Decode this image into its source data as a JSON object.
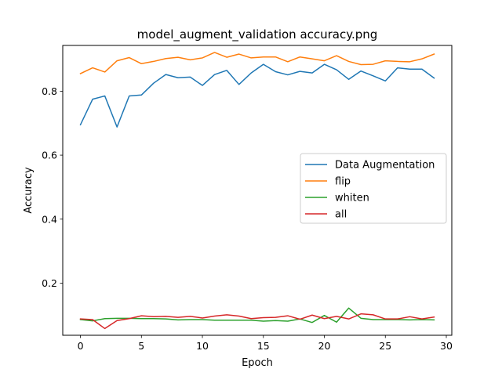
{
  "chart_data": {
    "type": "line",
    "title": "model_augment_validation accuracy.png",
    "xlabel": "Epoch",
    "ylabel": "Accuracy",
    "xlim": [
      -1.45,
      30.45
    ],
    "ylim": [
      0.037,
      0.943
    ],
    "xticks": [
      0,
      5,
      10,
      15,
      20,
      25,
      30
    ],
    "yticks": [
      0.2,
      0.4,
      0.6,
      0.8
    ],
    "xtick_labels": [
      "0",
      "5",
      "10",
      "15",
      "20",
      "25",
      "30"
    ],
    "ytick_labels": [
      "0.2",
      "0.4",
      "0.6",
      "0.8"
    ],
    "grid": false,
    "legend_position": "center-right",
    "x": [
      0,
      1,
      2,
      3,
      4,
      5,
      6,
      7,
      8,
      9,
      10,
      11,
      12,
      13,
      14,
      15,
      16,
      17,
      18,
      19,
      20,
      21,
      22,
      23,
      24,
      25,
      26,
      27,
      28,
      29
    ],
    "series": [
      {
        "name": "Data Augmentation",
        "color": "#1f77b4",
        "values": [
          0.695,
          0.775,
          0.785,
          0.688,
          0.785,
          0.788,
          0.825,
          0.852,
          0.842,
          0.844,
          0.818,
          0.852,
          0.865,
          0.821,
          0.857,
          0.884,
          0.861,
          0.851,
          0.862,
          0.857,
          0.884,
          0.867,
          0.837,
          0.863,
          0.848,
          0.832,
          0.873,
          0.869,
          0.869,
          0.841
        ]
      },
      {
        "name": "flip",
        "color": "#ff7f0e",
        "values": [
          0.855,
          0.873,
          0.86,
          0.895,
          0.905,
          0.886,
          0.893,
          0.902,
          0.906,
          0.898,
          0.904,
          0.921,
          0.906,
          0.916,
          0.904,
          0.907,
          0.907,
          0.892,
          0.907,
          0.901,
          0.895,
          0.911,
          0.893,
          0.883,
          0.884,
          0.895,
          0.893,
          0.892,
          0.901,
          0.916
        ]
      },
      {
        "name": "whiten",
        "color": "#2ca02c",
        "values": [
          0.086,
          0.082,
          0.089,
          0.09,
          0.09,
          0.089,
          0.089,
          0.088,
          0.085,
          0.086,
          0.086,
          0.084,
          0.084,
          0.084,
          0.084,
          0.081,
          0.083,
          0.081,
          0.088,
          0.077,
          0.099,
          0.078,
          0.122,
          0.09,
          0.086,
          0.086,
          0.086,
          0.085,
          0.086,
          0.085
        ]
      },
      {
        "name": "all",
        "color": "#d62728",
        "values": [
          0.088,
          0.086,
          0.058,
          0.083,
          0.089,
          0.098,
          0.095,
          0.096,
          0.093,
          0.096,
          0.091,
          0.097,
          0.101,
          0.097,
          0.089,
          0.092,
          0.093,
          0.098,
          0.087,
          0.1,
          0.089,
          0.096,
          0.088,
          0.104,
          0.101,
          0.088,
          0.088,
          0.095,
          0.088,
          0.094
        ]
      }
    ]
  }
}
